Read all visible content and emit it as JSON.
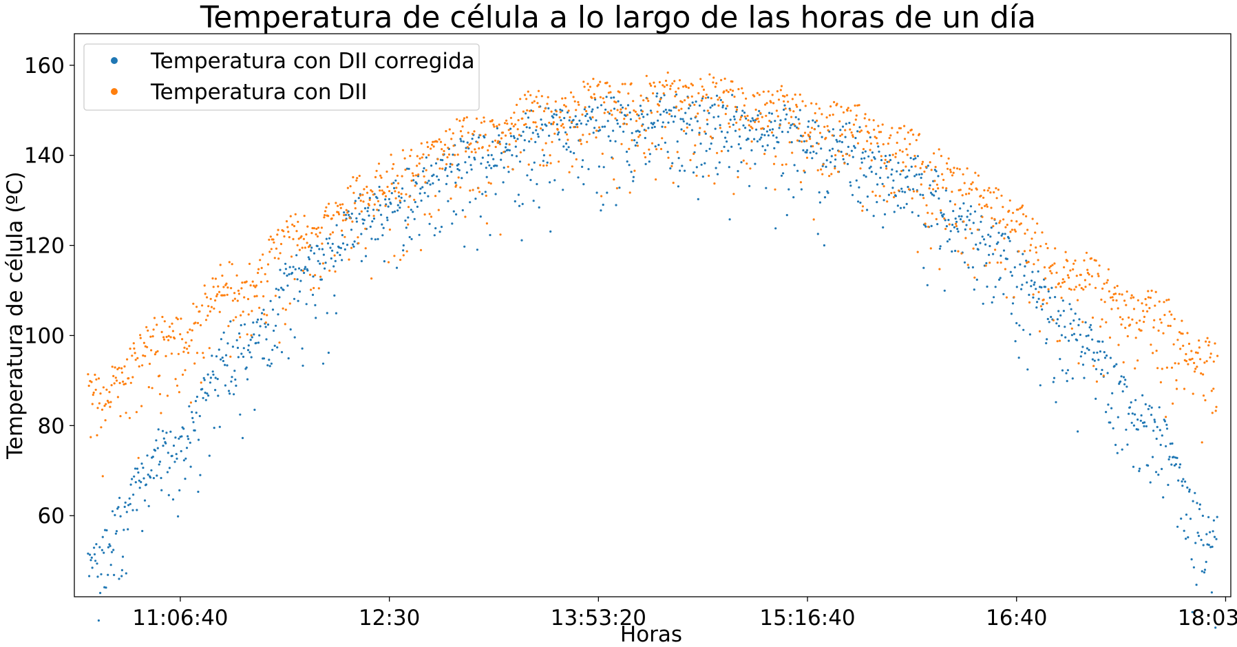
{
  "chart_data": {
    "type": "scatter",
    "title": "Temperatura de célula a lo largo de las horas de un día",
    "xlabel": "Horas",
    "ylabel": "Temperatura de célula (ºC)",
    "x_ticks": [
      "11:06:40",
      "12:30",
      "13:53:20",
      "15:16:40",
      "16:40",
      "18:03:20"
    ],
    "y_ticks": [
      "60",
      "80",
      "100",
      "120",
      "140",
      "160"
    ],
    "xlim": [
      "10:24:26",
      "18:05:24"
    ],
    "ylim": [
      42,
      167
    ],
    "legend_position": "upper left",
    "grid": false,
    "x_range": [
      "10:30",
      "18:00"
    ],
    "series": [
      {
        "name": "Temperatura con DII corregida",
        "color": "#1f77b4",
        "peak_time": "14:20",
        "min_start": 47,
        "envelope": [
          {
            "x": "10:30",
            "y": 56
          },
          {
            "x": "11:00",
            "y": 79
          },
          {
            "x": "11:30",
            "y": 103
          },
          {
            "x": "12:00",
            "y": 122
          },
          {
            "x": "12:30",
            "y": 135
          },
          {
            "x": "13:00",
            "y": 144
          },
          {
            "x": "13:30",
            "y": 150
          },
          {
            "x": "14:00",
            "y": 153
          },
          {
            "x": "14:30",
            "y": 154
          },
          {
            "x": "15:00",
            "y": 151
          },
          {
            "x": "15:30",
            "y": 147
          },
          {
            "x": "16:00",
            "y": 139
          },
          {
            "x": "16:30",
            "y": 126
          },
          {
            "x": "17:00",
            "y": 108
          },
          {
            "x": "17:30",
            "y": 88
          },
          {
            "x": "18:00",
            "y": 60
          }
        ]
      },
      {
        "name": "Temperatura con DII",
        "color": "#ff7f0e",
        "peak_time": "14:20",
        "envelope": [
          {
            "x": "10:30",
            "y": 91
          },
          {
            "x": "11:00",
            "y": 104
          },
          {
            "x": "11:30",
            "y": 117
          },
          {
            "x": "12:00",
            "y": 129
          },
          {
            "x": "12:30",
            "y": 140
          },
          {
            "x": "13:00",
            "y": 148
          },
          {
            "x": "13:30",
            "y": 154
          },
          {
            "x": "14:00",
            "y": 157
          },
          {
            "x": "14:30",
            "y": 158
          },
          {
            "x": "15:00",
            "y": 155
          },
          {
            "x": "15:30",
            "y": 152
          },
          {
            "x": "16:00",
            "y": 145
          },
          {
            "x": "16:30",
            "y": 134
          },
          {
            "x": "17:00",
            "y": 120
          },
          {
            "x": "17:30",
            "y": 110
          },
          {
            "x": "18:00",
            "y": 100
          }
        ]
      }
    ]
  }
}
